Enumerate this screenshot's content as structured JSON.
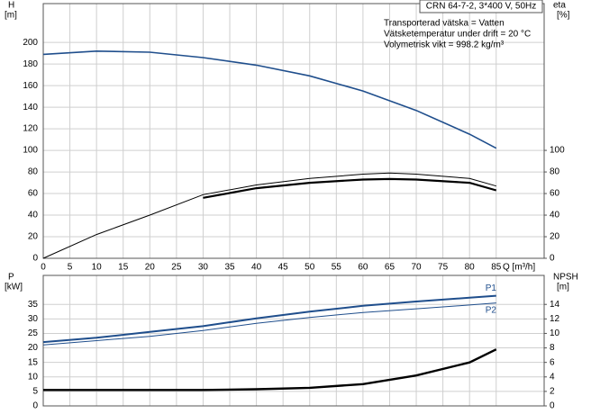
{
  "chart_data": [
    {
      "type": "line",
      "title": "CRN 64-7-2, 3*400 V, 50Hz",
      "annotations": [
        "Transporterad vätska = Vatten",
        "Vätsketemperatur under drift = 20 °C",
        "Volymetrisk vikt = 998.2 kg/m³"
      ],
      "y_label": "H",
      "y_unit": "[m]",
      "y2_label": "eta",
      "y2_unit": "[%]",
      "x_label": "Q [m³/h]",
      "xlim": [
        0,
        94
      ],
      "xticks": [
        0,
        5,
        10,
        15,
        20,
        25,
        30,
        35,
        40,
        45,
        50,
        55,
        60,
        65,
        70,
        75,
        80,
        85
      ],
      "ylim": [
        0,
        236
      ],
      "yticks": [
        0,
        20,
        40,
        60,
        80,
        100,
        120,
        140,
        160,
        180,
        200
      ],
      "y2lim": [
        0,
        236
      ],
      "y2ticks": [
        0,
        20,
        40,
        60,
        80,
        100
      ],
      "grid": true,
      "series": [
        {
          "color": "#1f4e8c",
          "x": [
            0,
            10,
            20,
            30,
            40,
            50,
            60,
            70,
            80,
            85
          ],
          "values": [
            189,
            192,
            191,
            186,
            179,
            169,
            155,
            137,
            115,
            102
          ]
        },
        {
          "color": "#000000",
          "axis": "y2",
          "x": [
            0,
            10,
            20,
            30,
            40,
            50,
            60,
            65,
            70,
            80,
            85
          ],
          "values": [
            0,
            22,
            40,
            59,
            68,
            74,
            78,
            79,
            78,
            74,
            67
          ]
        },
        {
          "color": "#000000",
          "axis": "y2",
          "x": [
            30,
            40,
            50,
            60,
            65,
            70,
            80,
            85
          ],
          "values": [
            56,
            65,
            70,
            73,
            73.5,
            73,
            70,
            63
          ]
        }
      ]
    },
    {
      "type": "line",
      "y_label": "P",
      "y_unit": "[kW]",
      "y2_label": "NPSH",
      "y2_unit": "[m]",
      "xlim": [
        0,
        94
      ],
      "ylim": [
        0,
        45
      ],
      "yticks": [
        0,
        5,
        10,
        15,
        20,
        25,
        30,
        35
      ],
      "y2lim": [
        0,
        18
      ],
      "y2ticks": [
        0,
        2,
        4,
        6,
        8,
        10,
        12,
        14
      ],
      "grid": true,
      "series": [
        {
          "name": "P1",
          "color": "#1f4e8c",
          "x": [
            0,
            10,
            20,
            30,
            40,
            50,
            60,
            70,
            80,
            85
          ],
          "values": [
            22,
            23.5,
            25.5,
            27.5,
            30.2,
            32.5,
            34.5,
            36,
            37.3,
            38
          ]
        },
        {
          "name": "P2",
          "color": "#1f4e8c",
          "x": [
            0,
            10,
            20,
            30,
            40,
            50,
            60,
            70,
            80,
            85
          ],
          "values": [
            21,
            22.5,
            24,
            26,
            28.5,
            30.5,
            32.2,
            33.5,
            34.8,
            35.5
          ]
        },
        {
          "color": "#000000",
          "axis": "y2",
          "x": [
            0,
            30,
            40,
            50,
            60,
            70,
            80,
            85
          ],
          "values": [
            2.2,
            2.2,
            2.3,
            2.5,
            3,
            4.2,
            6,
            7.8
          ]
        }
      ]
    }
  ]
}
